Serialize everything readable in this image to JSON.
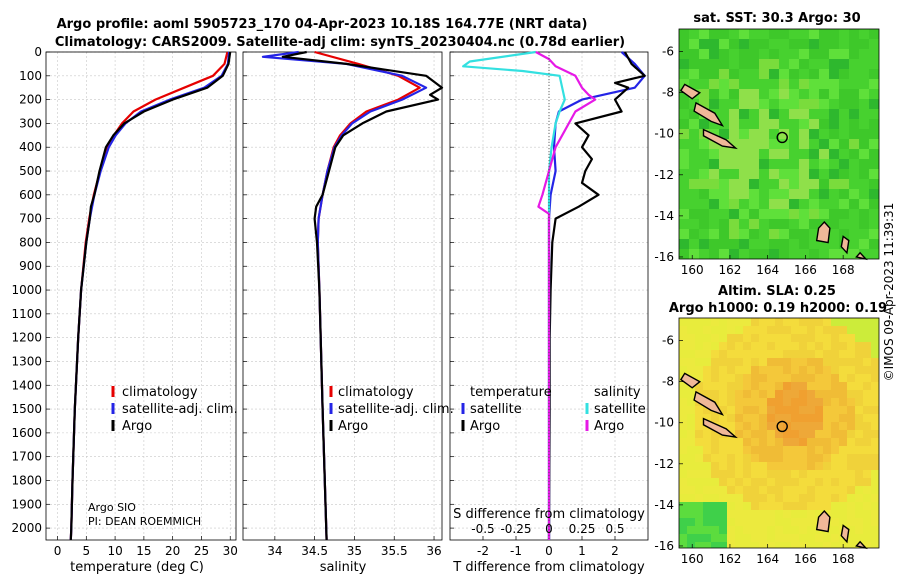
{
  "header": {
    "line1": "Argo profile: aoml 5905723_170 04-Apr-2023 10.18S 164.77E (NRT data)",
    "line2": "Climatology: CARS2009. Satellite-adj clim: synTS_20230404.nc (0.78d earlier)"
  },
  "depth_ticks": [
    "0",
    "100",
    "200",
    "300",
    "400",
    "500",
    "600",
    "700",
    "800",
    "900",
    "1000",
    "1100",
    "1200",
    "1300",
    "1400",
    "1500",
    "1600",
    "1700",
    "1800",
    "1900",
    "2000"
  ],
  "colors": {
    "climatology": "#e60000",
    "satellite": "#2424e6",
    "argo": "#000000",
    "sat_salinity": "#33e0e0",
    "argo_salinity": "#e619e6"
  },
  "chart_data": [
    {
      "type": "line",
      "name": "temperature",
      "xlabel": "temperature (deg C)",
      "ylabel": "depth",
      "xlim": [
        -2,
        31
      ],
      "ylim": [
        2050,
        0
      ],
      "xticks": [
        "0",
        "5",
        "10",
        "15",
        "20",
        "25",
        "30"
      ],
      "legend": [
        "climatology",
        "satellite-adj. clim.",
        "Argo"
      ],
      "series": [
        {
          "name": "climatology",
          "depth": [
            0,
            50,
            100,
            150,
            200,
            250,
            300,
            350,
            400,
            500,
            600,
            700,
            800,
            1000,
            1200,
            1500,
            1800,
            2000,
            2050
          ],
          "values": [
            29.5,
            29,
            27,
            22,
            17,
            13.2,
            11.2,
            9.8,
            8.7,
            7.4,
            6.3,
            5.5,
            4.9,
            4.1,
            3.6,
            3.0,
            2.6,
            2.4,
            2.3
          ]
        },
        {
          "name": "satellite-adj. clim.",
          "depth": [
            0,
            50,
            100,
            150,
            200,
            250,
            300,
            350,
            400,
            500,
            600,
            700,
            800,
            1000,
            1200,
            1500,
            1800,
            2000,
            2050
          ],
          "values": [
            29.8,
            29.6,
            28.5,
            25.5,
            19.5,
            14.5,
            11.8,
            10.1,
            8.9,
            7.5,
            6.4,
            5.6,
            5.0,
            4.1,
            3.6,
            3.0,
            2.6,
            2.4,
            2.3
          ]
        },
        {
          "name": "Argo",
          "depth": [
            0,
            50,
            100,
            150,
            200,
            250,
            300,
            350,
            400,
            500,
            600,
            650,
            700,
            800,
            1000,
            1200,
            1500,
            1800,
            2000,
            2050
          ],
          "values": [
            30,
            29.7,
            28.7,
            26,
            20,
            15,
            11.6,
            9.7,
            8.4,
            7.3,
            6.4,
            5.8,
            5.6,
            5.0,
            4.1,
            3.6,
            3.0,
            2.6,
            2.4,
            2.3
          ]
        }
      ],
      "annotations": [
        "Argo SIO",
        "PI: DEAN ROEMMICH"
      ]
    },
    {
      "type": "line",
      "name": "salinity",
      "xlabel": "salinity",
      "xlim": [
        33.6,
        36.1
      ],
      "ylim": [
        2050,
        0
      ],
      "xticks": [
        "34",
        "34.5",
        "35",
        "35.5",
        "36"
      ],
      "legend": [
        "climatology",
        "satellite-adj. clim.",
        "Argo"
      ],
      "series": [
        {
          "name": "climatology",
          "depth": [
            0,
            50,
            100,
            150,
            200,
            250,
            300,
            350,
            400,
            500,
            600,
            700,
            800,
            1000,
            1500,
            2050
          ],
          "values": [
            34.5,
            35.05,
            35.55,
            35.82,
            35.55,
            35.15,
            34.95,
            34.82,
            34.74,
            34.66,
            34.6,
            34.55,
            34.54,
            34.56,
            34.6,
            34.65
          ]
        },
        {
          "name": "satellite-adj. clim.",
          "depth": [
            0,
            20,
            50,
            100,
            150,
            200,
            250,
            300,
            350,
            400,
            500,
            600,
            700,
            800,
            1000,
            1500,
            2050
          ],
          "values": [
            34.3,
            33.85,
            34.9,
            35.6,
            35.9,
            35.6,
            35.2,
            34.97,
            34.84,
            34.75,
            34.66,
            34.6,
            34.55,
            34.54,
            34.56,
            34.6,
            34.65
          ]
        },
        {
          "name": "Argo",
          "depth": [
            0,
            20,
            50,
            100,
            150,
            180,
            200,
            250,
            300,
            350,
            400,
            500,
            600,
            650,
            700,
            800,
            1000,
            1500,
            2050
          ],
          "values": [
            34.4,
            34.1,
            34.9,
            35.9,
            36.1,
            35.95,
            36.05,
            35.4,
            35.1,
            34.86,
            34.76,
            34.68,
            34.6,
            34.52,
            34.5,
            34.53,
            34.56,
            34.6,
            34.65
          ]
        }
      ]
    },
    {
      "type": "line",
      "name": "differences",
      "xlabel": "T difference from climatology",
      "xlabel_top": "S difference from climatology",
      "xlim": [
        -3,
        3
      ],
      "ylim": [
        2050,
        0
      ],
      "xticks": [
        "-2",
        "-1",
        "0",
        "1",
        "2"
      ],
      "xticks_top": [
        "-0.5",
        "-0.25",
        "0",
        "0.25",
        "0.5"
      ],
      "legend_temperature_title": "temperature",
      "legend_salinity_title": "salinity",
      "legend_temperature": [
        "satellite",
        "Argo"
      ],
      "legend_salinity": [
        "satellite",
        "Argo"
      ],
      "series": [
        {
          "name": "T satellite",
          "depth": [
            0,
            50,
            100,
            150,
            200,
            250,
            300,
            400,
            500,
            600,
            700,
            800,
            1000,
            1500,
            2050
          ],
          "values": [
            2.2,
            2.6,
            2.9,
            2.6,
            1.0,
            0.3,
            0.2,
            0.15,
            0.2,
            0.05,
            0.0,
            0.0,
            0.0,
            0.0,
            0.0
          ]
        },
        {
          "name": "T Argo",
          "depth": [
            0,
            50,
            100,
            130,
            150,
            200,
            250,
            300,
            350,
            400,
            450,
            500,
            550,
            600,
            650,
            700,
            800,
            1000,
            1200,
            1500,
            2050
          ],
          "values": [
            2.3,
            2.5,
            2.9,
            2.0,
            2.4,
            2.0,
            2.2,
            0.8,
            1.2,
            1.0,
            1.3,
            1.1,
            1.0,
            1.5,
            0.9,
            0.2,
            0.1,
            0.05,
            0.02,
            0.02,
            0.0
          ]
        },
        {
          "name": "S satellite",
          "depth": [
            0,
            40,
            60,
            80,
            100,
            150,
            200,
            250,
            300,
            400,
            500,
            600,
            700,
            800,
            1000,
            1500,
            2050
          ],
          "values": [
            -0.1,
            -0.6,
            -0.65,
            -0.2,
            0.08,
            0.1,
            0.12,
            0.08,
            0.05,
            0.02,
            0.0,
            0.0,
            0.0,
            0.0,
            0.0,
            0.0,
            0.0
          ]
        },
        {
          "name": "S Argo",
          "depth": [
            0,
            30,
            60,
            100,
            150,
            180,
            200,
            250,
            300,
            400,
            500,
            600,
            650,
            680,
            700,
            800,
            1000,
            1500,
            2050
          ],
          "values": [
            -0.1,
            0.0,
            0.05,
            0.2,
            0.25,
            0.3,
            0.35,
            0.2,
            0.15,
            0.05,
            0.0,
            -0.05,
            -0.08,
            0.0,
            0.0,
            0.0,
            0.0,
            0.0,
            0.0
          ]
        }
      ]
    },
    {
      "type": "heatmap",
      "name": "sat-sst-map",
      "title": "sat. SST: 30.3 Argo: 30",
      "xlim": [
        159.3,
        169.9
      ],
      "ylim": [
        -16.1,
        -4.9
      ],
      "xticks": [
        "160",
        "162",
        "164",
        "166",
        "168"
      ],
      "yticks": [
        "-6",
        "-8",
        "-10",
        "-12",
        "-14",
        "-16"
      ],
      "argo_position": [
        164.77,
        -10.18
      ]
    },
    {
      "type": "heatmap",
      "name": "sla-map",
      "title_line1": "Altim. SLA: 0.25",
      "title_line2": "Argo h1000: 0.19 h2000: 0.19",
      "xlim": [
        159.3,
        169.9
      ],
      "ylim": [
        -16.1,
        -4.9
      ],
      "xticks": [
        "160",
        "162",
        "164",
        "166",
        "168"
      ],
      "yticks": [
        "-6",
        "-8",
        "-10",
        "-12",
        "-14",
        "-16"
      ],
      "argo_position": [
        164.77,
        -10.18
      ]
    }
  ],
  "credit": "©IMOS 09-Apr-2023 11:39:31"
}
